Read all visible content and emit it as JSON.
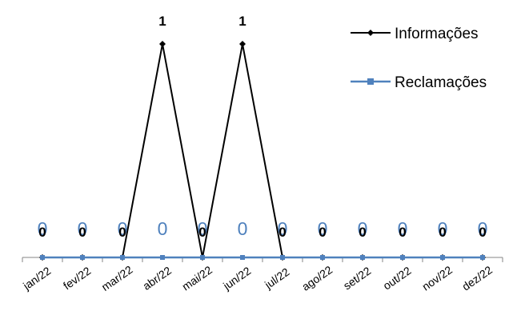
{
  "chart_data": {
    "type": "line",
    "categories": [
      "jan/22",
      "fev/22",
      "mar/22",
      "abr/22",
      "mai/22",
      "jun/22",
      "jul/22",
      "ago/22",
      "set/22",
      "out/22",
      "nov/22",
      "dez/22"
    ],
    "series": [
      {
        "name": "Informações",
        "values": [
          0,
          0,
          0,
          1,
          0,
          1,
          0,
          0,
          0,
          0,
          0,
          0
        ],
        "color": "#000000",
        "marker": "diamond"
      },
      {
        "name": "Reclamações",
        "values": [
          0,
          0,
          0,
          0,
          0,
          0,
          0,
          0,
          0,
          0,
          0,
          0
        ],
        "color": "#4f81bd",
        "marker": "square"
      }
    ],
    "ylim": [
      0,
      1
    ],
    "grid": false,
    "legend_position": "top-right",
    "data_labels": true
  }
}
